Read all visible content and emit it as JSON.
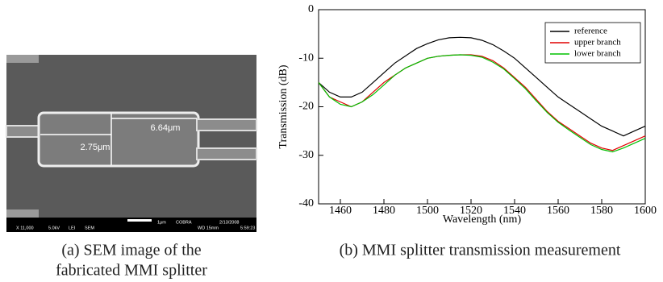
{
  "figure_a": {
    "image": {
      "labels": [
        "6.64μm",
        "2.75μm"
      ],
      "footer": [
        "X 11,000",
        "5.0kV",
        "LEI",
        "SEM",
        "1μm",
        "COBRA",
        "WD 15mm",
        "2/13/2008",
        "5:59:23"
      ]
    },
    "caption_lines": [
      "(a)  SEM image of the",
      "fabricated MMI splitter"
    ]
  },
  "chart_data": {
    "type": "line",
    "xlabel": "Wavelength (nm)",
    "ylabel": "Transmission (dB)",
    "caption": "(b)  MMI splitter transmission measurement",
    "x": [
      1450,
      1455,
      1460,
      1465,
      1470,
      1475,
      1480,
      1485,
      1490,
      1495,
      1500,
      1505,
      1510,
      1515,
      1520,
      1525,
      1530,
      1535,
      1540,
      1545,
      1550,
      1555,
      1560,
      1565,
      1570,
      1575,
      1580,
      1585,
      1590,
      1595,
      1600
    ],
    "series": [
      {
        "name": "reference",
        "color": "#000000",
        "values": [
          -15,
          -17,
          -18,
          -18,
          -17,
          -15,
          -13,
          -11,
          -9.5,
          -8,
          -7,
          -6.2,
          -5.8,
          -5.7,
          -5.8,
          -6.3,
          -7.2,
          -8.5,
          -10,
          -12,
          -14,
          -16,
          -18,
          -19.5,
          -21,
          -22.5,
          -24,
          -25,
          -26,
          -25,
          -24
        ]
      },
      {
        "name": "upper branch",
        "color": "#e00000",
        "values": [
          -15,
          -18,
          -19,
          -20,
          -19,
          -17,
          -15,
          -13.5,
          -12,
          -11,
          -10,
          -9.6,
          -9.4,
          -9.3,
          -9.3,
          -9.6,
          -10.5,
          -12,
          -14,
          -16,
          -18.5,
          -21,
          -23,
          -24.5,
          -26,
          -27.5,
          -28.5,
          -29,
          -28,
          -27,
          -26
        ]
      },
      {
        "name": "lower branch",
        "color": "#00c000",
        "values": [
          -15,
          -18,
          -19.5,
          -20,
          -19,
          -17.5,
          -15.5,
          -13.5,
          -12,
          -11,
          -10,
          -9.6,
          -9.4,
          -9.3,
          -9.4,
          -9.8,
          -10.8,
          -12.2,
          -14.2,
          -16.3,
          -18.8,
          -21.2,
          -23.2,
          -24.8,
          -26.3,
          -27.8,
          -28.8,
          -29.3,
          -28.5,
          -27.5,
          -26.5
        ]
      }
    ],
    "xlim": [
      1450,
      1600
    ],
    "ylim": [
      -40,
      0
    ],
    "xticks": [
      1460,
      1480,
      1500,
      1520,
      1540,
      1560,
      1580,
      1600
    ],
    "yticks": [
      0,
      -10,
      -20,
      -30,
      -40
    ],
    "legend": "upper right"
  }
}
